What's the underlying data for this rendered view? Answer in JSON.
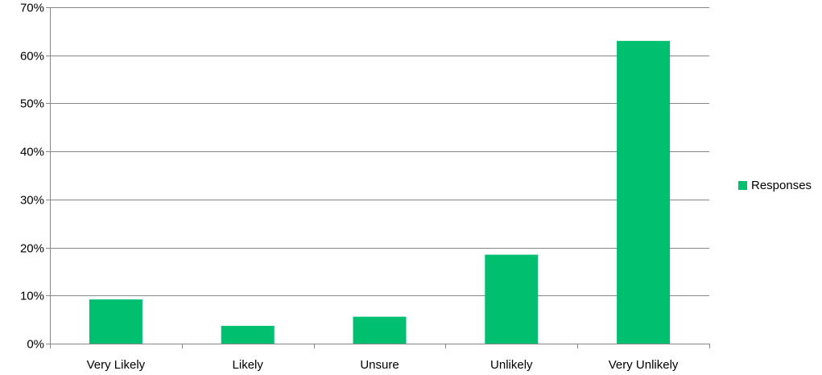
{
  "chart_data": {
    "type": "bar",
    "categories": [
      "Very Likely",
      "Likely",
      "Unsure",
      "Unlikely",
      "Very Unlikely"
    ],
    "series": [
      {
        "name": "Responses",
        "values": [
          0.092,
          0.037,
          0.056,
          0.185,
          0.63
        ]
      }
    ],
    "ylim": [
      0,
      0.7
    ],
    "yticks": [
      0,
      0.1,
      0.2,
      0.3,
      0.4,
      0.5,
      0.6,
      0.7
    ],
    "ytick_labels": [
      "0%",
      "10%",
      "20%",
      "30%",
      "40%",
      "50%",
      "60%",
      "70%"
    ],
    "title": "",
    "xlabel": "",
    "ylabel": "",
    "grid": true,
    "legend_position": "right",
    "colors": {
      "bar": "#00bf6f",
      "grid": "#868686",
      "axis": "#868686"
    }
  }
}
